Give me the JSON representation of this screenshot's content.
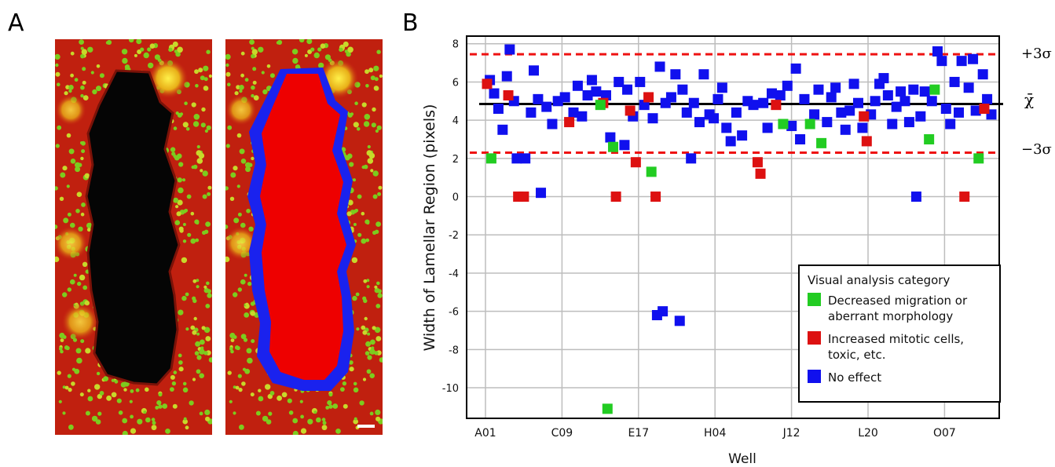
{
  "panels": {
    "a_letter": "A",
    "b_letter": "B"
  },
  "colors": {
    "decreased": "#22cc22",
    "increased": "#dd1111",
    "no_effect": "#1010ee",
    "threshold": "#ee1111",
    "mean": "#000000",
    "tissue_red": "#c41a10",
    "nuclei_green": "#7ccc1e",
    "gap": "#050505",
    "mask_red": "#ee0000",
    "mask_blue": "#1a22ee"
  },
  "chart_data": {
    "type": "scatter",
    "xlabel": "Well",
    "ylabel": "Width of Lamellar Region (pixels)",
    "x_ticks": [
      "A01",
      "C09",
      "E17",
      "H04",
      "J12",
      "L20",
      "O07"
    ],
    "ylim": [
      -11.6,
      8.4
    ],
    "y_ticks": [
      8,
      6,
      4,
      2,
      0,
      -2,
      -4,
      -6,
      -8,
      -10
    ],
    "grid": true,
    "legend_position": "bottom-right",
    "mean_line": {
      "value": 4.85,
      "label": "χ̄"
    },
    "threshold_lines": [
      {
        "value": 7.45,
        "label": "+3σ"
      },
      {
        "value": 2.3,
        "label": "−3σ"
      }
    ],
    "legend": {
      "title": "Visual analysis category",
      "entries": [
        {
          "key": "decreased",
          "lines": [
            "Decreased migration or",
            "aberrant morphology"
          ]
        },
        {
          "key": "increased",
          "lines": [
            "Increased mitotic cells,",
            "toxic, etc."
          ]
        },
        {
          "key": "no_effect",
          "lines": [
            "No effect"
          ]
        }
      ]
    },
    "series": [
      {
        "key": "decreased",
        "points": [
          [
            3,
            2.0
          ],
          [
            80,
            4.8
          ],
          [
            89,
            2.6
          ],
          [
            85,
            -11.1
          ],
          [
            116,
            1.3
          ],
          [
            209,
            3.8
          ],
          [
            228,
            3.8
          ],
          [
            236,
            2.8
          ],
          [
            316,
            5.6
          ],
          [
            312,
            3.0
          ],
          [
            347,
            2.0
          ]
        ]
      },
      {
        "key": "increased",
        "points": [
          [
            0,
            5.9
          ],
          [
            15,
            5.3
          ],
          [
            22,
            0.0
          ],
          [
            26,
            0.0
          ],
          [
            58,
            3.9
          ],
          [
            82,
            4.9
          ],
          [
            91,
            0.0
          ],
          [
            101,
            4.5
          ],
          [
            105,
            1.8
          ],
          [
            114,
            5.2
          ],
          [
            119,
            0.0
          ],
          [
            191,
            1.8
          ],
          [
            193,
            1.2
          ],
          [
            204,
            4.8
          ],
          [
            266,
            4.2
          ],
          [
            268,
            2.9
          ],
          [
            337,
            0.0
          ],
          [
            351,
            4.6
          ]
        ]
      },
      {
        "key": "no_effect",
        "points": [
          [
            2,
            6.1
          ],
          [
            5,
            5.4
          ],
          [
            8,
            4.6
          ],
          [
            11,
            3.5
          ],
          [
            14,
            6.3
          ],
          [
            16,
            7.7
          ],
          [
            19,
            5.0
          ],
          [
            21,
            2.0
          ],
          [
            27,
            2.0
          ],
          [
            31,
            4.4
          ],
          [
            33,
            6.6
          ],
          [
            36,
            5.1
          ],
          [
            38,
            0.2
          ],
          [
            42,
            4.7
          ],
          [
            46,
            3.8
          ],
          [
            50,
            5.0
          ],
          [
            55,
            5.2
          ],
          [
            61,
            4.4
          ],
          [
            64,
            5.8
          ],
          [
            67,
            4.2
          ],
          [
            71,
            5.3
          ],
          [
            74,
            6.1
          ],
          [
            77,
            5.5
          ],
          [
            84,
            5.3
          ],
          [
            87,
            3.1
          ],
          [
            93,
            6.0
          ],
          [
            97,
            2.7
          ],
          [
            99,
            5.6
          ],
          [
            103,
            4.2
          ],
          [
            108,
            6.0
          ],
          [
            111,
            4.8
          ],
          [
            117,
            4.1
          ],
          [
            120,
            -6.2
          ],
          [
            122,
            6.8
          ],
          [
            124,
            -6.0
          ],
          [
            126,
            4.9
          ],
          [
            130,
            5.2
          ],
          [
            133,
            6.4
          ],
          [
            136,
            -6.5
          ],
          [
            138,
            5.6
          ],
          [
            141,
            4.4
          ],
          [
            144,
            2.0
          ],
          [
            146,
            4.9
          ],
          [
            150,
            3.9
          ],
          [
            153,
            6.4
          ],
          [
            157,
            4.3
          ],
          [
            160,
            4.1
          ],
          [
            163,
            5.1
          ],
          [
            166,
            5.7
          ],
          [
            169,
            3.6
          ],
          [
            172,
            2.9
          ],
          [
            176,
            4.4
          ],
          [
            180,
            3.2
          ],
          [
            184,
            5.0
          ],
          [
            188,
            4.8
          ],
          [
            195,
            4.9
          ],
          [
            198,
            3.6
          ],
          [
            201,
            5.4
          ],
          [
            207,
            5.3
          ],
          [
            212,
            5.8
          ],
          [
            215,
            3.7
          ],
          [
            218,
            6.7
          ],
          [
            221,
            3.0
          ],
          [
            224,
            5.1
          ],
          [
            231,
            4.3
          ],
          [
            234,
            5.6
          ],
          [
            240,
            3.9
          ],
          [
            243,
            5.2
          ],
          [
            246,
            5.7
          ],
          [
            250,
            4.4
          ],
          [
            253,
            3.5
          ],
          [
            256,
            4.5
          ],
          [
            259,
            5.9
          ],
          [
            262,
            4.9
          ],
          [
            265,
            3.6
          ],
          [
            271,
            4.3
          ],
          [
            274,
            5.0
          ],
          [
            277,
            5.9
          ],
          [
            280,
            6.2
          ],
          [
            283,
            5.3
          ],
          [
            286,
            3.8
          ],
          [
            289,
            4.7
          ],
          [
            292,
            5.5
          ],
          [
            295,
            5.0
          ],
          [
            298,
            3.9
          ],
          [
            301,
            5.6
          ],
          [
            303,
            0.0
          ],
          [
            306,
            4.2
          ],
          [
            309,
            5.5
          ],
          [
            314,
            5.0
          ],
          [
            318,
            7.6
          ],
          [
            321,
            7.1
          ],
          [
            324,
            4.6
          ],
          [
            327,
            3.8
          ],
          [
            330,
            6.0
          ],
          [
            333,
            4.4
          ],
          [
            335,
            7.1
          ],
          [
            340,
            5.7
          ],
          [
            343,
            7.2
          ],
          [
            345,
            4.5
          ],
          [
            350,
            6.4
          ],
          [
            353,
            5.1
          ],
          [
            356,
            4.3
          ]
        ]
      }
    ]
  }
}
